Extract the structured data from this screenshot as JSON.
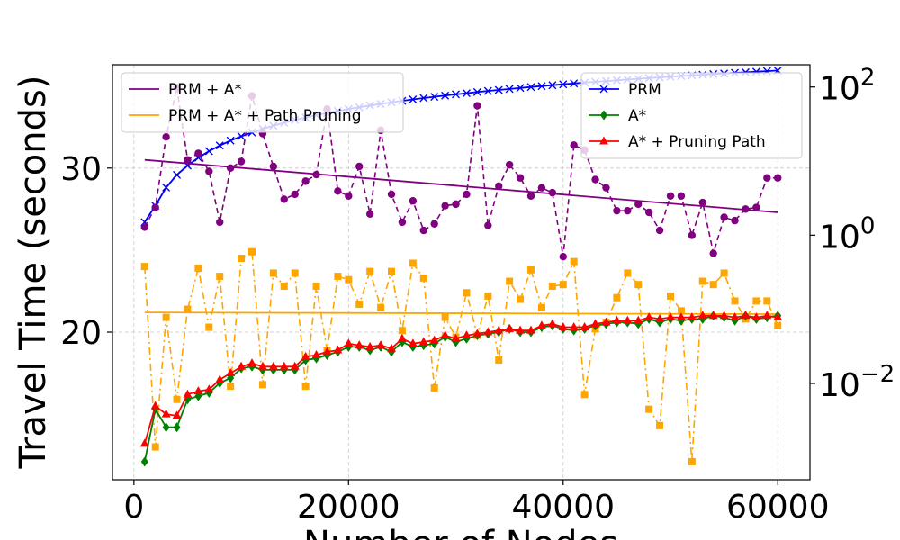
{
  "chart_data": {
    "type": "line",
    "xlabel": "Number of Nodes",
    "ylabel": "Travel Time (seconds)",
    "x_ticks": [
      "0",
      "20000",
      "40000",
      "60000"
    ],
    "y_ticks": [
      "20",
      "30"
    ],
    "y2_ticks": [
      {
        "base": "10",
        "exp": "2"
      },
      {
        "base": "10",
        "exp": "0"
      },
      {
        "base": "10",
        "exp": "−2"
      }
    ],
    "xlim": [
      -2000,
      63000
    ],
    "ylim": [
      11.0,
      36.3
    ],
    "y2_scale": "log",
    "y2lim_log10": [
      -3.3,
      2.3
    ],
    "grid": true,
    "legend_left": {
      "placement": "upper-left",
      "entries": [
        {
          "label": "PRM + A*",
          "color": "#800080"
        },
        {
          "label": "PRM + A* + Path Pruning",
          "color": "#FFA500"
        }
      ]
    },
    "legend_right": {
      "placement": "upper-right",
      "entries": [
        {
          "label": "PRM",
          "color": "#0000FF",
          "marker": "x"
        },
        {
          "label": "A*",
          "color": "#008000",
          "marker": "diamond"
        },
        {
          "label": "A* + Pruning Path",
          "color": "#FF0000",
          "marker": "triangle"
        }
      ]
    },
    "x": [
      1000,
      2000,
      3000,
      4000,
      5000,
      6000,
      7000,
      8000,
      9000,
      10000,
      11000,
      12000,
      13000,
      14000,
      15000,
      16000,
      17000,
      18000,
      19000,
      20000,
      21000,
      22000,
      23000,
      24000,
      25000,
      26000,
      27000,
      28000,
      29000,
      30000,
      31000,
      32000,
      33000,
      34000,
      35000,
      36000,
      37000,
      38000,
      39000,
      40000,
      41000,
      42000,
      43000,
      44000,
      45000,
      46000,
      47000,
      48000,
      49000,
      50000,
      51000,
      52000,
      53000,
      54000,
      55000,
      56000,
      57000,
      58000,
      59000,
      60000
    ],
    "series_left_axis": [
      {
        "name": "PRM + A* (scatter)",
        "color": "#800080",
        "marker": "circle",
        "linestyle": "dashed",
        "values": [
          26.4,
          27.6,
          31.9,
          34.9,
          30.5,
          30.9,
          29.8,
          26.7,
          30.0,
          30.4,
          34.4,
          32.1,
          30.1,
          28.1,
          28.4,
          29.2,
          29.6,
          33.6,
          28.6,
          28.3,
          30.1,
          27.2,
          32.3,
          28.4,
          26.7,
          28.0,
          26.2,
          26.6,
          27.7,
          27.8,
          28.4,
          33.8,
          26.5,
          28.9,
          30.2,
          29.4,
          28.3,
          28.8,
          28.5,
          24.6,
          31.4,
          31.1,
          29.3,
          28.8,
          27.4,
          27.4,
          27.8,
          27.3,
          26.2,
          28.3,
          28.3,
          25.9,
          27.9,
          24.8,
          27.0,
          26.8,
          27.5,
          27.6,
          29.4,
          29.4
        ]
      },
      {
        "name": "PRM + A* (trend)",
        "color": "#800080",
        "marker": "none",
        "linestyle": "solid",
        "values_at": [
          1000,
          60000
        ],
        "values": [
          30.5,
          27.3
        ]
      },
      {
        "name": "PRM + A* + Path Pruning (scatter)",
        "color": "#FFA500",
        "marker": "square",
        "linestyle": "dashdot",
        "values": [
          24.0,
          13.0,
          20.9,
          15.9,
          21.4,
          23.9,
          20.3,
          23.4,
          16.7,
          24.5,
          24.9,
          16.8,
          23.6,
          22.8,
          23.6,
          16.7,
          22.8,
          18.9,
          23.4,
          23.2,
          21.7,
          23.7,
          21.5,
          23.7,
          20.1,
          24.2,
          23.3,
          16.6,
          20.9,
          19.7,
          22.4,
          19.8,
          22.2,
          18.3,
          23.1,
          22.0,
          23.8,
          21.5,
          22.8,
          22.9,
          24.3,
          16.2,
          20.2,
          20.6,
          22.1,
          23.6,
          22.9,
          15.3,
          14.3,
          22.2,
          21.3,
          12.1,
          23.1,
          22.9,
          23.6,
          21.9,
          20.8,
          21.9,
          21.9,
          20.4
        ]
      },
      {
        "name": "PRM + A* + Path Pruning (trend)",
        "color": "#FFA500",
        "marker": "none",
        "linestyle": "solid",
        "values_at": [
          1000,
          60000
        ],
        "values": [
          21.2,
          21.1
        ]
      },
      {
        "name": "A*",
        "color": "#008000",
        "marker": "diamond",
        "linestyle": "solid",
        "values": [
          12.1,
          15.3,
          14.2,
          14.2,
          15.9,
          16.1,
          16.3,
          16.9,
          17.2,
          17.8,
          17.9,
          17.7,
          17.7,
          17.7,
          17.7,
          18.3,
          18.4,
          18.6,
          18.8,
          19.1,
          19.1,
          18.9,
          19.1,
          18.8,
          19.4,
          19.1,
          19.2,
          19.3,
          19.7,
          19.4,
          19.6,
          19.8,
          19.9,
          20.0,
          20.2,
          20.0,
          20.0,
          20.3,
          20.4,
          20.2,
          20.1,
          20.2,
          20.4,
          20.5,
          20.6,
          20.6,
          20.5,
          20.8,
          20.6,
          20.8,
          20.7,
          20.8,
          20.8,
          21.0,
          20.9,
          20.7,
          21.0,
          20.8,
          20.9,
          21.0
        ]
      },
      {
        "name": "A* + Pruning Path",
        "color": "#FF0000",
        "marker": "triangle",
        "linestyle": "solid",
        "values": [
          13.2,
          15.5,
          15.0,
          14.9,
          16.2,
          16.4,
          16.5,
          17.1,
          17.5,
          17.9,
          18.1,
          17.9,
          17.9,
          17.9,
          17.9,
          18.5,
          18.6,
          18.8,
          18.9,
          19.3,
          19.2,
          19.1,
          19.2,
          19.0,
          19.6,
          19.3,
          19.4,
          19.5,
          19.8,
          19.6,
          19.8,
          19.9,
          20.0,
          20.1,
          20.2,
          20.1,
          20.1,
          20.4,
          20.5,
          20.3,
          20.3,
          20.3,
          20.5,
          20.6,
          20.7,
          20.7,
          20.7,
          20.9,
          20.8,
          20.9,
          20.9,
          20.9,
          21.0,
          21.0,
          21.0,
          20.9,
          21.0,
          20.9,
          21.0,
          20.9
        ]
      }
    ],
    "series_right_axis": [
      {
        "name": "PRM",
        "color": "#0000FF",
        "marker": "x",
        "linestyle": "solid",
        "scale": "log",
        "values": [
          1.5,
          2.5,
          4.4,
          6.5,
          8.7,
          11.1,
          13.6,
          16.2,
          18.9,
          21.6,
          24.3,
          27.2,
          30.0,
          32.9,
          35.8,
          38.7,
          41.6,
          44.5,
          47.5,
          50.4,
          53.3,
          56.2,
          59.1,
          62.0,
          65.0,
          67.9,
          70.8,
          73.7,
          76.6,
          79.6,
          82.5,
          85.4,
          88.3,
          91.2,
          94.1,
          97.0,
          99.9,
          102.8,
          105.7,
          108.6,
          111.5,
          114.4,
          117.3,
          120.2,
          123.1,
          126.0,
          128.9,
          131.8,
          134.7,
          137.6,
          140.5,
          143.4,
          146.3,
          149.2,
          152.1,
          155.0,
          157.9,
          160.8,
          163.7,
          166.6
        ]
      }
    ]
  }
}
